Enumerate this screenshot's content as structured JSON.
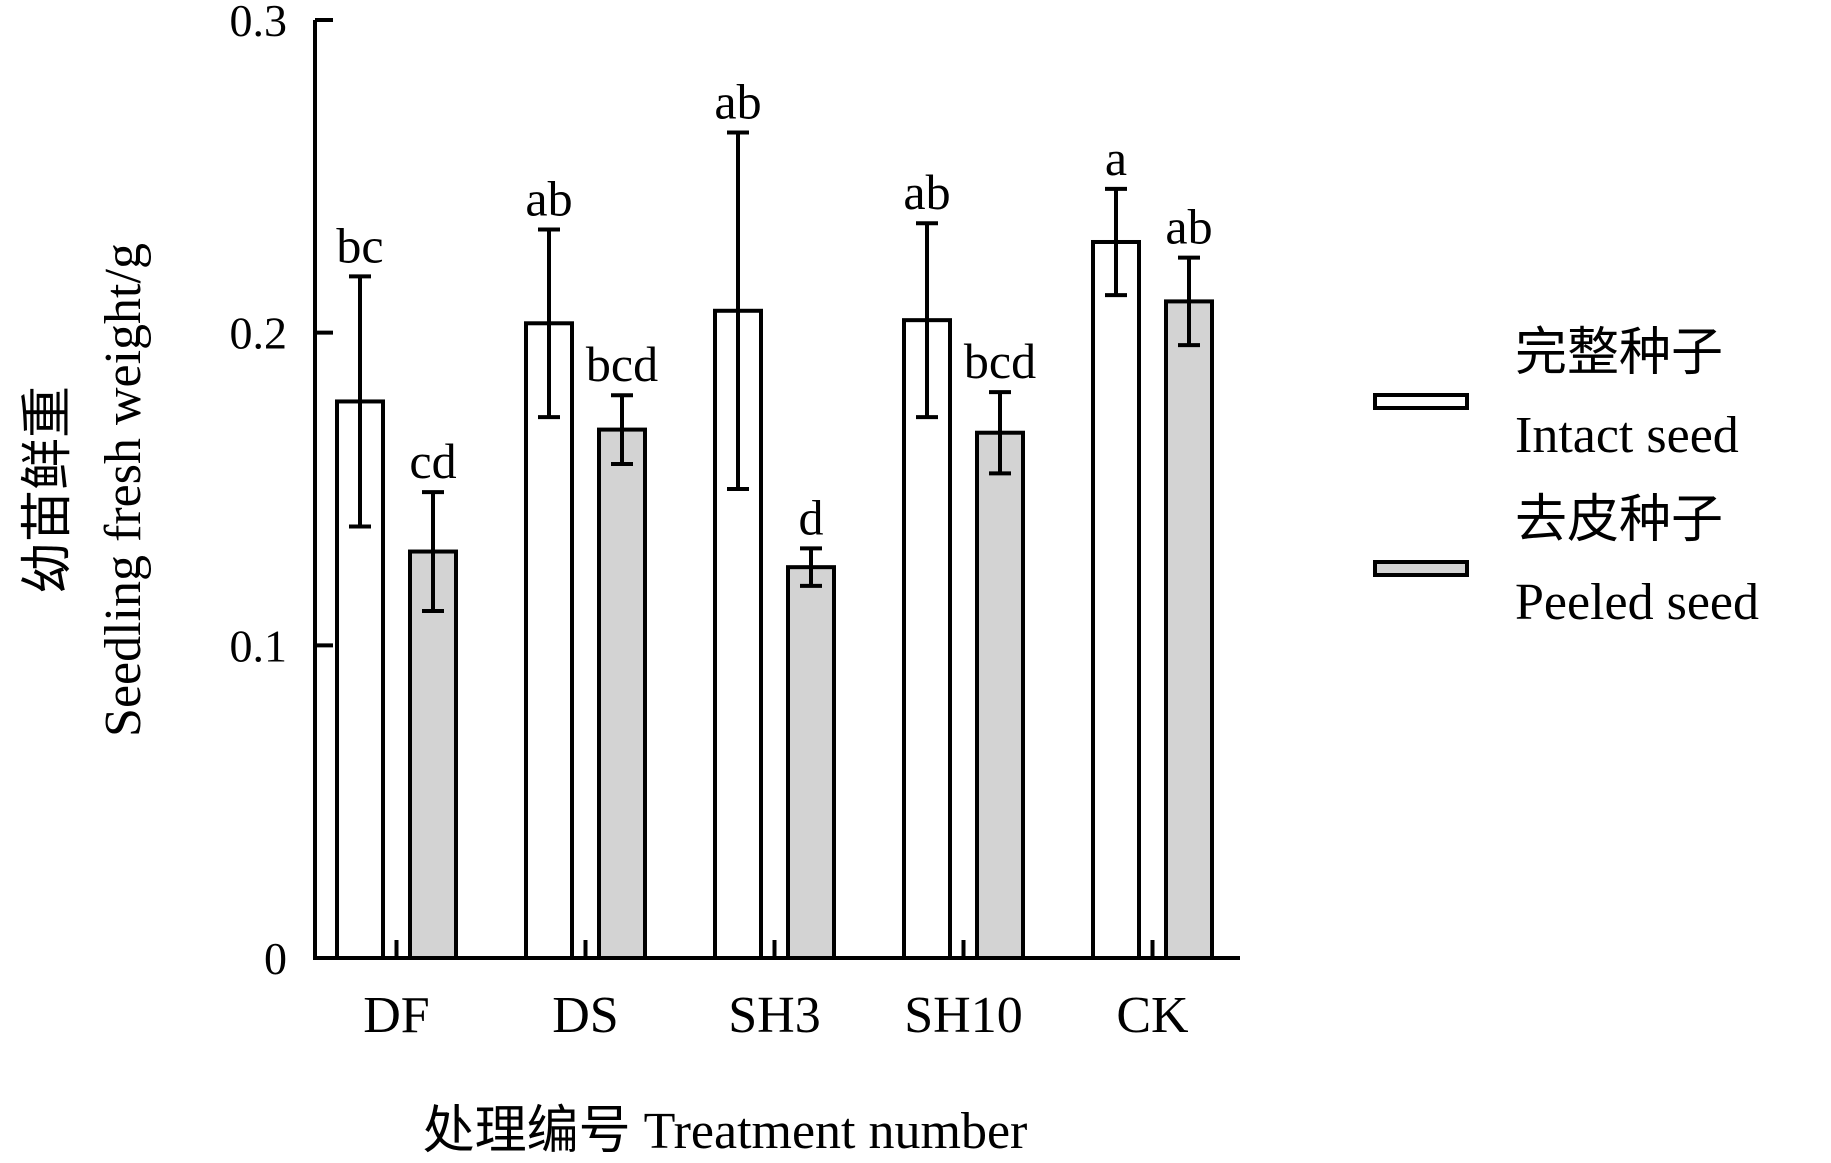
{
  "chart_data": {
    "type": "bar",
    "categories": [
      "DF",
      "DS",
      "SH3",
      "SH10",
      "CK"
    ],
    "series": [
      {
        "name": "完整种子 Intact seed",
        "name_lines": [
          "完整种子",
          "Intact seed"
        ],
        "color": "#ffffff",
        "values": [
          0.178,
          0.203,
          0.207,
          0.204,
          0.229
        ],
        "errors": [
          0.04,
          0.03,
          0.057,
          0.031,
          0.017
        ],
        "letters": [
          "bc",
          "ab",
          "ab",
          "ab",
          "a"
        ]
      },
      {
        "name": "去皮种子 Peeled seed",
        "name_lines": [
          "去皮种子",
          "Peeled seed"
        ],
        "color": "#d3d3d3",
        "values": [
          0.13,
          0.169,
          0.125,
          0.168,
          0.21
        ],
        "errors": [
          0.019,
          0.011,
          0.006,
          0.013,
          0.014
        ],
        "letters": [
          "cd",
          "bcd",
          "d",
          "bcd",
          "ab"
        ]
      }
    ],
    "ylim": [
      0,
      0.3
    ],
    "yticks": [
      0,
      0.1,
      0.2,
      0.3
    ],
    "ytick_labels": [
      "0",
      "0.1",
      "0.2",
      "0.3"
    ],
    "xlabel": "处理编号 Treatment number",
    "ylabel_lines": [
      "幼苗鲜重",
      "Seedling fresh weight/g"
    ],
    "legend_position": "right",
    "grid": false
  }
}
